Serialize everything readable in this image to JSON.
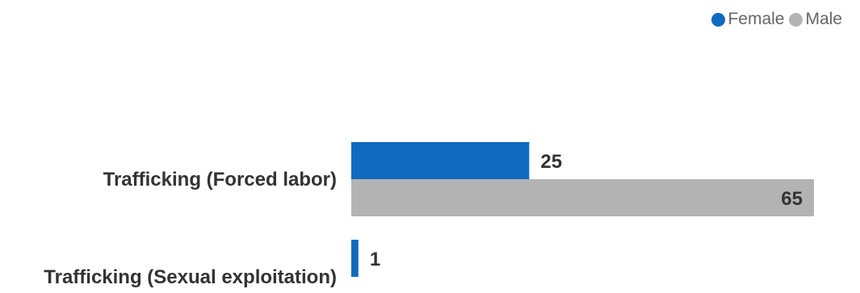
{
  "chart_data": {
    "type": "bar",
    "orientation": "horizontal",
    "categories": [
      "Trafficking (Forced labor)",
      "Trafficking (Sexual exploitation)"
    ],
    "series": [
      {
        "name": "Female",
        "color": "#0f6abf",
        "values": [
          25,
          1
        ]
      },
      {
        "name": "Male",
        "color": "#b3b3b3",
        "values": [
          65,
          null
        ]
      }
    ],
    "xlim": [
      0,
      65
    ],
    "grid": false,
    "legend_position": "top-right"
  }
}
